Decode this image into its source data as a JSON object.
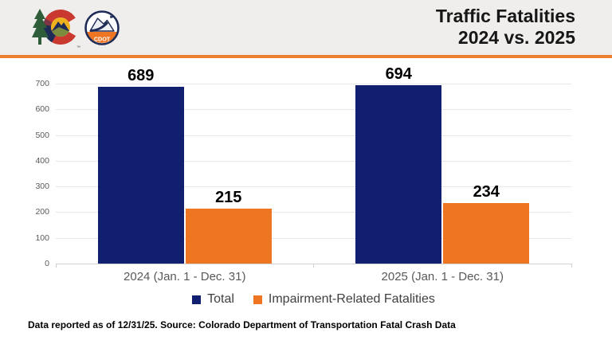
{
  "header": {
    "title_line1": "Traffic Fatalities",
    "title_line2": "2024 vs. 2025",
    "logos": {
      "cdot_label": "CDOT",
      "trademark": "™"
    }
  },
  "chart_data": {
    "type": "bar",
    "title": "Traffic Fatalities 2024 vs. 2025",
    "categories": [
      "2024 (Jan. 1 - Dec. 31)",
      "2025 (Jan. 1 - Dec. 31)"
    ],
    "series": [
      {
        "name": "Total",
        "values": [
          689,
          694
        ],
        "color": "#101f70"
      },
      {
        "name": "Impairment-Related Fatalities",
        "values": [
          215,
          234
        ],
        "color": "#ee7623"
      }
    ],
    "ylim": [
      0,
      700
    ],
    "ytick_step": 100,
    "grid": true,
    "data_labels": true,
    "legend_position": "bottom"
  },
  "footer": {
    "note": "Data reported as of 12/31/25. Source: Colorado Department of Transportation Fatal Crash Data"
  },
  "colors": {
    "navy": "#101f70",
    "orange": "#ee7623",
    "divider_orange": "#ed7d31",
    "header_bg": "#efeeec",
    "grid": "#e8e8e8",
    "axis": "#d2d2d2",
    "tick_text": "#595959",
    "legend_text": "#3f3f3f",
    "logo_navy": "#1e2b56",
    "logo_red": "#c9392f",
    "logo_green": "#2f5d3a",
    "logo_gold": "#efb21f"
  }
}
